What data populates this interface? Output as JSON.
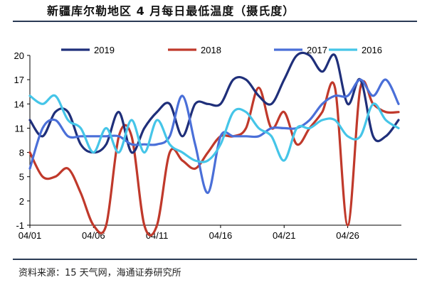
{
  "title": "新疆库尔勒地区 4 月每日最低温度（摄氏度）",
  "source": "资料来源：15 天气网，海通证券研究所",
  "chart_data": {
    "type": "line",
    "title": "新疆库尔勒地区 4 月每日最低温度（摄氏度）",
    "xlabel": "",
    "ylabel": "",
    "ylim": [
      -1,
      20
    ],
    "yticks": [
      -1,
      2,
      5,
      8,
      11,
      14,
      17,
      20
    ],
    "x": [
      "04/01",
      "04/02",
      "04/03",
      "04/04",
      "04/05",
      "04/06",
      "04/07",
      "04/08",
      "04/09",
      "04/10",
      "04/11",
      "04/12",
      "04/13",
      "04/14",
      "04/15",
      "04/16",
      "04/17",
      "04/18",
      "04/19",
      "04/20",
      "04/21",
      "04/22",
      "04/23",
      "04/24",
      "04/25",
      "04/26",
      "04/27",
      "04/28",
      "04/29",
      "04/30"
    ],
    "xtick_labels": [
      "04/01",
      "04/06",
      "04/11",
      "04/16",
      "04/21",
      "04/26"
    ],
    "legend_position": "top",
    "grid": false,
    "series": [
      {
        "name": "2019",
        "color": "#1f2f7a",
        "values": [
          12,
          10,
          13,
          13,
          9,
          8,
          9,
          13,
          8,
          11,
          13,
          14,
          10,
          14,
          14,
          14,
          17,
          17,
          15,
          14,
          17,
          20,
          20,
          18,
          20,
          14,
          17,
          10,
          10,
          12
        ]
      },
      {
        "name": "2018",
        "color": "#c0392b",
        "values": [
          8,
          5,
          5,
          6,
          3,
          -1,
          -1,
          10,
          10,
          -1,
          -1,
          8,
          7,
          6,
          8,
          10,
          10,
          11,
          16,
          11,
          13,
          9,
          11,
          13,
          16,
          -1,
          16,
          14,
          13,
          13
        ]
      },
      {
        "name": "2017",
        "color": "#4a6fd8",
        "values": [
          6,
          11,
          12,
          10,
          10,
          10,
          10,
          10,
          9,
          9,
          9,
          10,
          15,
          9,
          3,
          10,
          10,
          10,
          10,
          11,
          11,
          11,
          12,
          14,
          15,
          15,
          17,
          15,
          17,
          14
        ]
      },
      {
        "name": "2016",
        "color": "#45c5e8",
        "values": [
          15,
          14,
          15,
          12,
          11,
          8,
          11,
          8,
          12,
          8,
          12,
          9,
          8,
          7,
          7,
          9,
          13,
          13,
          11,
          10,
          7,
          11,
          11,
          12,
          12,
          10,
          10,
          14,
          12,
          11
        ]
      }
    ]
  }
}
